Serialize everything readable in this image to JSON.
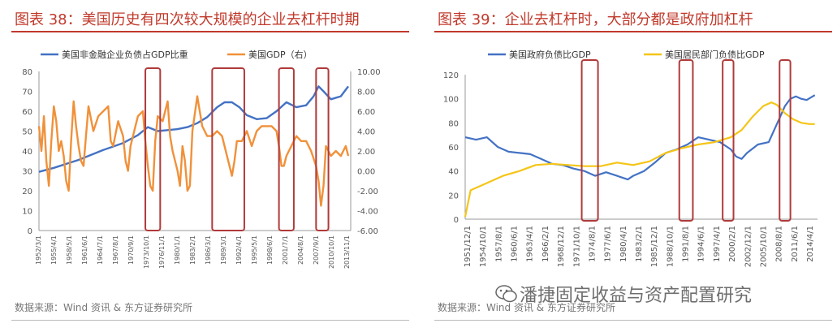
{
  "left": {
    "title": "图表 38：美国历史有四次较大规模的企业去杠杆时期",
    "source": "数据来源：Wind 资讯 & 东方证券研究所",
    "chart_data": {
      "type": "line",
      "title": "",
      "legend_position": "top",
      "series": [
        {
          "name": "美国非金融企业负债占GDP比重",
          "axis": "left",
          "color": "#4472c4",
          "x": [
            1952.0,
            1955.0,
            1960.0,
            1965.0,
            1969.0,
            1972.0,
            1974.0,
            1976.0,
            1978.0,
            1980.0,
            1982.0,
            1984.0,
            1986.0,
            1988.0,
            1989.5,
            1991.0,
            1992.5,
            1994.0,
            1996.0,
            1998.0,
            2000.0,
            2002.0,
            2004.0,
            2006.0,
            2007.5,
            2008.5,
            2009.5,
            2011.0,
            2013.0,
            2014.5
          ],
          "y": [
            29.5,
            31.5,
            35.5,
            40.5,
            44,
            48,
            52,
            50,
            50.5,
            51,
            52,
            54,
            57,
            62,
            64.5,
            64.5,
            62,
            58,
            56,
            56.5,
            60,
            64.5,
            62,
            63,
            67.5,
            72.5,
            70,
            66,
            67.5,
            72.5
          ]
        },
        {
          "name": "美国GDP（右）",
          "axis": "right",
          "color": "#f0913a",
          "x": [
            1952.0,
            1952.5,
            1953.0,
            1953.5,
            1954.0,
            1954.5,
            1955.0,
            1955.5,
            1956.0,
            1956.5,
            1957.0,
            1957.5,
            1958.0,
            1958.5,
            1959.0,
            1959.5,
            1960.0,
            1960.5,
            1961.0,
            1961.5,
            1962.0,
            1963.0,
            1964.0,
            1965.0,
            1966.0,
            1966.5,
            1967.0,
            1968.0,
            1969.0,
            1969.5,
            1970.0,
            1970.5,
            1971.0,
            1972.0,
            1973.0,
            1973.5,
            1974.0,
            1974.5,
            1975.0,
            1975.5,
            1976.0,
            1977.0,
            1978.0,
            1978.5,
            1979.0,
            1980.0,
            1980.5,
            1981.0,
            1981.5,
            1982.0,
            1982.5,
            1983.0,
            1984.0,
            1985.0,
            1986.0,
            1987.0,
            1988.0,
            1989.0,
            1990.0,
            1990.5,
            1991.0,
            1991.5,
            1992.0,
            1993.0,
            1994.0,
            1995.0,
            1996.0,
            1997.0,
            1998.0,
            1999.0,
            2000.0,
            2000.5,
            2001.0,
            2001.5,
            2002.0,
            2003.0,
            2004.0,
            2005.0,
            2006.0,
            2007.0,
            2008.0,
            2008.5,
            2009.0,
            2009.5,
            2010.0,
            2011.0,
            2012.0,
            2013.0,
            2014.0,
            2014.5
          ],
          "y": [
            4.5,
            2.0,
            5.5,
            1.0,
            -1.5,
            3.0,
            6.5,
            5.0,
            2.0,
            3.0,
            1.5,
            -1.0,
            -2.0,
            3.0,
            7.0,
            4.5,
            2.5,
            1.0,
            0.5,
            3.5,
            6.5,
            4.0,
            5.5,
            6.0,
            6.5,
            3.0,
            2.5,
            5.0,
            3.5,
            1.0,
            0.0,
            2.5,
            3.5,
            5.5,
            6.0,
            3.0,
            0.5,
            -1.5,
            -2.0,
            3.0,
            5.5,
            5.0,
            7.0,
            3.5,
            2.0,
            0.0,
            -1.5,
            2.5,
            1.0,
            -2.0,
            -1.5,
            4.0,
            7.5,
            4.5,
            3.5,
            3.5,
            4.0,
            3.5,
            1.5,
            0.5,
            -0.5,
            1.0,
            3.0,
            3.0,
            4.0,
            2.5,
            4.0,
            4.5,
            4.5,
            4.5,
            4.0,
            2.5,
            0.5,
            0.5,
            1.5,
            2.5,
            3.5,
            3.0,
            3.0,
            2.0,
            0.5,
            -1.0,
            -3.5,
            -1.5,
            2.5,
            1.5,
            2.0,
            1.5,
            2.5,
            1.5
          ]
        }
      ],
      "ylim_left": [
        0,
        80
      ],
      "yticks_left": [
        "0",
        "10",
        "20",
        "30",
        "40",
        "50",
        "60",
        "70",
        "80"
      ],
      "ylim_right": [
        -6,
        10
      ],
      "yticks_right": [
        "-6.00",
        "-4.00",
        "-2.00",
        "0.00",
        "2.00",
        "4.00",
        "6.00",
        "8.00",
        "10.00"
      ],
      "xlim": [
        1952.0,
        2015.0
      ],
      "xtick_labels": [
        "1952/3/1",
        "1955/4/1",
        "1958/5/1",
        "1961/6/1",
        "1964/7/1",
        "1967/8/1",
        "1970/9/1",
        "1973/10/1",
        "1976/11/1",
        "1980/1/1",
        "1983/2/1",
        "1986/3/1",
        "1989/3/1",
        "1992/4/1",
        "1995/5/1",
        "1998/6/1",
        "2001/7/1",
        "2004/8/1",
        "2007/9/1",
        "2010/10/1",
        "2013/11/1"
      ],
      "highlight_periods": [
        [
          1973.5,
          1976.5
        ],
        [
          1987.0,
          1993.5
        ],
        [
          2000.5,
          2003.5
        ],
        [
          2008.0,
          2010.5
        ]
      ]
    }
  },
  "right": {
    "title": "图表 39：企业去杠杆时，大部分都是政府加杠杆",
    "source": "数据来源：Wind 资讯 & 东方证券研究所",
    "watermark": "潘捷固定收益与资产配置研究",
    "chart_data": {
      "type": "line",
      "title": "",
      "legend_position": "top",
      "series": [
        {
          "name": "美国政府负债比GDP",
          "color": "#4472c4",
          "x": [
            1951.0,
            1953.0,
            1955.0,
            1957.0,
            1959.0,
            1961.0,
            1963.0,
            1965.0,
            1967.0,
            1969.0,
            1971.0,
            1973.0,
            1975.0,
            1977.0,
            1979.0,
            1981.0,
            1982.0,
            1984.0,
            1986.0,
            1988.0,
            1990.0,
            1992.0,
            1994.0,
            1996.0,
            1998.0,
            2000.0,
            2001.0,
            2002.0,
            2003.0,
            2005.0,
            2007.0,
            2008.0,
            2009.0,
            2010.0,
            2011.0,
            2012.0,
            2013.0,
            2014.0,
            2015.5
          ],
          "y": [
            68,
            66,
            68,
            60,
            56,
            55,
            54,
            50,
            46,
            45,
            42,
            40,
            36,
            39,
            36,
            33,
            36,
            40,
            47,
            55,
            58,
            62,
            68,
            66,
            64,
            58,
            52,
            50,
            55,
            62,
            64,
            74,
            84,
            94,
            100,
            102,
            100,
            99,
            103
          ]
        },
        {
          "name": "美国居民部门负债比GDP",
          "color": "#f5c518",
          "x": [
            1951.0,
            1952.0,
            1955.0,
            1958.0,
            1961.0,
            1964.0,
            1967.0,
            1970.0,
            1973.0,
            1976.0,
            1979.0,
            1982.0,
            1985.0,
            1988.0,
            1991.0,
            1994.0,
            1997.0,
            2000.0,
            2002.0,
            2004.0,
            2006.0,
            2007.5,
            2008.5,
            2010.0,
            2011.5,
            2013.0,
            2014.5,
            2015.5
          ],
          "y": [
            2,
            24,
            30,
            36,
            40,
            45,
            46,
            45,
            44,
            44,
            47,
            45,
            48,
            55,
            59,
            62,
            64,
            68,
            74,
            85,
            94,
            97,
            95,
            88,
            83,
            80,
            79,
            79
          ]
        }
      ],
      "ylim": [
        0,
        120
      ],
      "yticks": [
        "0",
        "20",
        "40",
        "60",
        "80",
        "100",
        "120"
      ],
      "xlim": [
        1951.0,
        2016.0
      ],
      "xtick_labels": [
        "1951/12/1",
        "1954/10/1",
        "1957/8/1",
        "1960/6/1",
        "1963/4/1",
        "1966/2/1",
        "1968/12/1",
        "1971/10/1",
        "1974/8/1",
        "1977/6/1",
        "1980/4/1",
        "1983/2/1",
        "1985/12/1",
        "1988/10/1",
        "1991/8/1",
        "1994/6/1",
        "1997/4/1",
        "2000/2/1",
        "2002/12/1",
        "2005/10/1",
        "2008/8/1",
        "2011/6/1",
        "2014/4/1"
      ],
      "highlight_periods": [
        [
          1972.5,
          1975.5
        ],
        [
          1990.5,
          1993.0
        ],
        [
          1998.5,
          2000.5
        ],
        [
          2009.0,
          2011.0
        ]
      ]
    }
  },
  "colors": {
    "title_red": "#c0392b",
    "highlight": "#b03a3a",
    "axis": "#888888"
  }
}
